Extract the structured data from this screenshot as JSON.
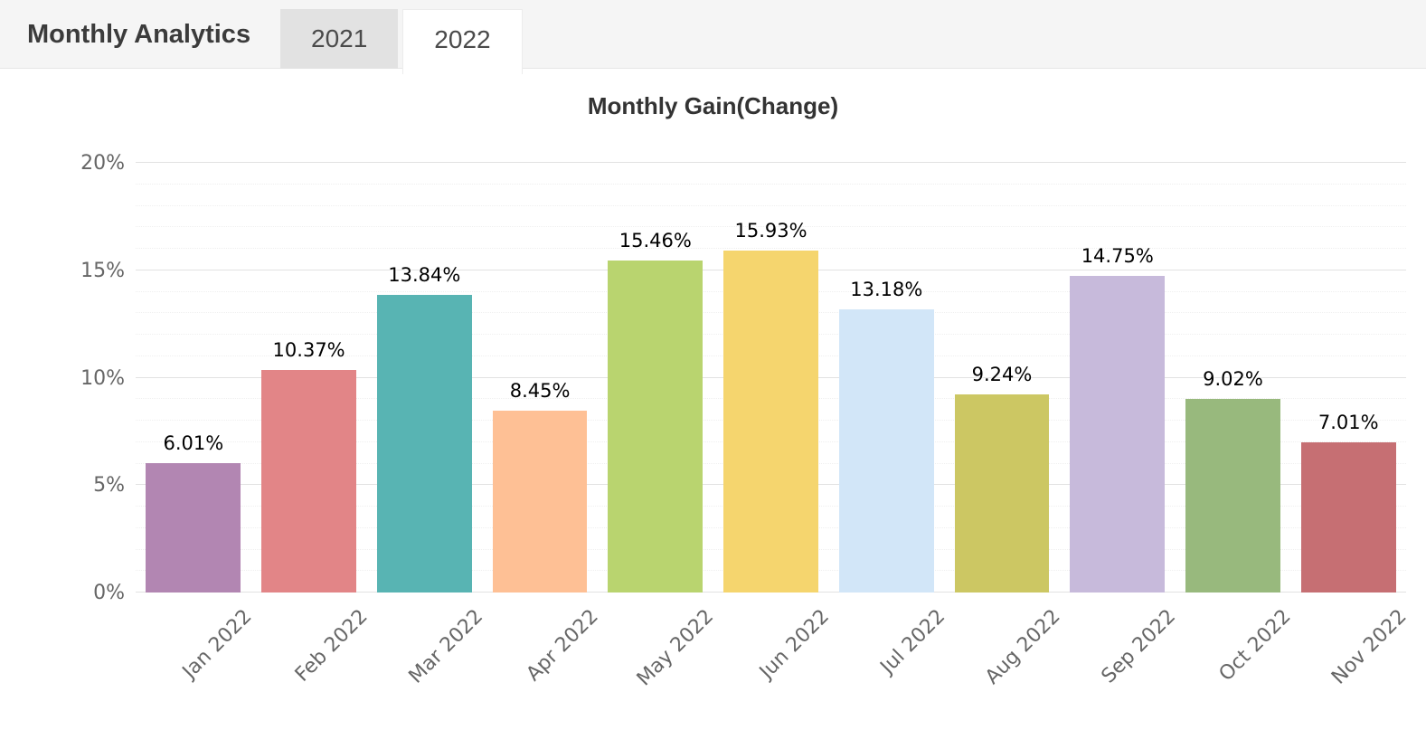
{
  "header": {
    "title": "Monthly Analytics",
    "tabs": [
      {
        "label": "2021",
        "active": false
      },
      {
        "label": "2022",
        "active": true
      }
    ]
  },
  "chart_data": {
    "type": "bar",
    "title": "Monthly Gain(Change)",
    "categories": [
      "Jan 2022",
      "Feb 2022",
      "Mar 2022",
      "Apr 2022",
      "May 2022",
      "Jun 2022",
      "Jul 2022",
      "Aug 2022",
      "Sep 2022",
      "Oct 2022",
      "Nov 2022"
    ],
    "values": [
      6.01,
      10.37,
      13.84,
      8.45,
      15.46,
      15.93,
      13.18,
      9.24,
      14.75,
      9.02,
      7.01
    ],
    "value_labels": [
      "6.01%",
      "10.37%",
      "13.84%",
      "8.45%",
      "15.46%",
      "15.93%",
      "13.18%",
      "9.24%",
      "14.75%",
      "9.02%",
      "7.01%"
    ],
    "bar_colors": [
      "#b286b2",
      "#e28587",
      "#58b4b3",
      "#fec095",
      "#b9d46f",
      "#f5d56e",
      "#d2e6f8",
      "#ccc763",
      "#c7badb",
      "#98b97d",
      "#c66f73"
    ],
    "xlabel": "",
    "ylabel": "",
    "ylim": [
      0,
      20
    ],
    "y_ticks": [
      "0%",
      "5%",
      "10%",
      "15%",
      "20%"
    ],
    "grid": {
      "major_step": 5,
      "minor_step": 1,
      "visible": true
    },
    "legend_position": "none",
    "x_label_rotation_deg": -45
  },
  "colors": {
    "header_bg": "#f5f5f5",
    "tab_inactive_bg": "#e2e2e2",
    "tab_active_bg": "#ffffff",
    "grid_major": "#e2e2e2",
    "axis_text": "#666666",
    "title_text": "#333333"
  }
}
